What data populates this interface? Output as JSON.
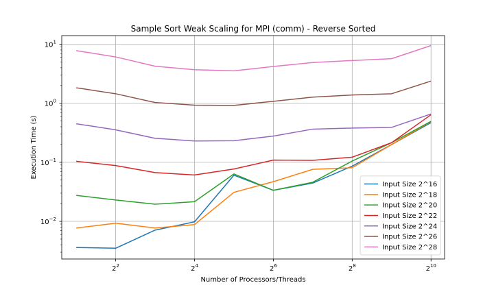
{
  "chart_data": {
    "type": "line",
    "title": "Sample Sort Weak Scaling for MPI (comm) - Reverse Sorted",
    "xlabel": "Number of Processors/Threads",
    "ylabel": "Execution Time (s)",
    "x_scale": "log2",
    "y_scale": "log10",
    "x": [
      2,
      4,
      8,
      16,
      32,
      64,
      128,
      256,
      512,
      1024
    ],
    "xlim": [
      1.55,
      1300
    ],
    "ylim": [
      0.0023,
      14
    ],
    "x_ticks": [
      {
        "value": 4,
        "base": "2",
        "exp": "2"
      },
      {
        "value": 16,
        "base": "2",
        "exp": "4"
      },
      {
        "value": 64,
        "base": "2",
        "exp": "6"
      },
      {
        "value": 256,
        "base": "2",
        "exp": "8"
      },
      {
        "value": 1024,
        "base": "2",
        "exp": "10"
      }
    ],
    "y_ticks": [
      {
        "value": 0.01,
        "base": "10",
        "exp": "−2"
      },
      {
        "value": 0.1,
        "base": "10",
        "exp": "−1"
      },
      {
        "value": 1,
        "base": "10",
        "exp": "0"
      },
      {
        "value": 10,
        "base": "10",
        "exp": "1"
      }
    ],
    "grid": true,
    "legend_position": "lower-right",
    "series": [
      {
        "name": "Input Size 2^16",
        "color": "#1f77b4",
        "values": [
          0.0036,
          0.0035,
          0.0071,
          0.0098,
          0.0605,
          0.0335,
          0.0445,
          0.086,
          0.2,
          0.47
        ]
      },
      {
        "name": "Input Size 2^18",
        "color": "#ff7f0e",
        "values": [
          0.0077,
          0.0093,
          0.0077,
          0.0088,
          0.031,
          0.047,
          0.076,
          0.081,
          0.2,
          0.49
        ]
      },
      {
        "name": "Input Size 2^20",
        "color": "#2ca02c",
        "values": [
          0.0275,
          0.023,
          0.0195,
          0.0215,
          0.0635,
          0.0335,
          0.046,
          0.105,
          0.215,
          0.495
        ]
      },
      {
        "name": "Input Size 2^22",
        "color": "#d62728",
        "values": [
          0.104,
          0.088,
          0.067,
          0.061,
          0.077,
          0.109,
          0.108,
          0.122,
          0.215,
          0.64
        ]
      },
      {
        "name": "Input Size 2^24",
        "color": "#9467bd",
        "values": [
          0.45,
          0.355,
          0.255,
          0.23,
          0.232,
          0.278,
          0.365,
          0.38,
          0.39,
          0.66
        ]
      },
      {
        "name": "Input Size 2^26",
        "color": "#8c564b",
        "values": [
          1.83,
          1.45,
          1.03,
          0.93,
          0.92,
          1.08,
          1.27,
          1.38,
          1.45,
          2.38
        ]
      },
      {
        "name": "Input Size 2^28",
        "color": "#e377c2",
        "values": [
          7.8,
          6.1,
          4.25,
          3.7,
          3.55,
          4.2,
          4.9,
          5.3,
          5.7,
          9.5
        ]
      }
    ]
  }
}
